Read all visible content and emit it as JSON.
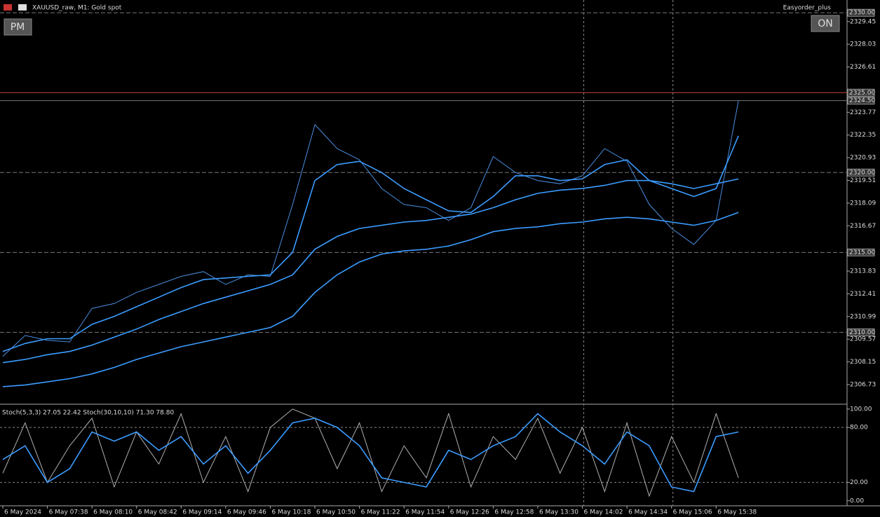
{
  "header": {
    "symbol": "XAUUSD_raw, M1:  Gold spot",
    "expert": "Easyorder_plus",
    "button_left": "PM",
    "button_right": "ON"
  },
  "chart_data": [
    {
      "type": "line",
      "categories": [
        "6 May 2024",
        null,
        "6 May 07:38",
        null,
        "6 May 08:10",
        null,
        "6 May 08:42",
        null,
        "6 May 09:14",
        null,
        "6 May 09:46",
        null,
        "6 May 10:18",
        null,
        "6 May 10:50",
        null,
        "6 May 11:22",
        null,
        "6 May 11:54",
        null,
        "6 May 12:26",
        null,
        "6 May 12:58",
        null,
        "6 May 13:30",
        null,
        "6 May 14:02",
        null,
        "6 May 14:34",
        null,
        "6 May 15:06",
        null,
        "6 May 15:38",
        null,
        null,
        null,
        null,
        null
      ],
      "ylim": [
        2305.5,
        2330.8
      ],
      "yticks": [
        {
          "value": 2329.45,
          "label": "2329.45"
        },
        {
          "value": 2328.03,
          "label": "2328.03"
        },
        {
          "value": 2326.61,
          "label": "2326.61"
        },
        {
          "value": 2323.77,
          "label": "2323.77"
        },
        {
          "value": 2322.35,
          "label": "2322.35"
        },
        {
          "value": 2320.93,
          "label": "2320.93"
        },
        {
          "value": 2319.51,
          "label": "2319.51"
        },
        {
          "value": 2318.09,
          "label": "2318.09"
        },
        {
          "value": 2316.67,
          "label": "2316.67"
        },
        {
          "value": 2313.83,
          "label": "2313.83"
        },
        {
          "value": 2312.41,
          "label": "2312.41"
        },
        {
          "value": 2310.99,
          "label": "2310.99"
        },
        {
          "value": 2309.57,
          "label": "2309.57"
        },
        {
          "value": 2308.15,
          "label": "2308.15"
        },
        {
          "value": 2306.73,
          "label": "2306.73"
        }
      ],
      "levels": [
        {
          "value": 2330,
          "label": "2330.00"
        },
        {
          "value": 2325,
          "label": "2325.00"
        },
        {
          "value": 2324.5,
          "label": "2324.50"
        },
        {
          "value": 2320,
          "label": "2320.00"
        },
        {
          "value": 2315,
          "label": "2315.00"
        },
        {
          "value": 2310,
          "label": "2310.00"
        }
      ],
      "series": [
        {
          "color": "#4a8de0",
          "values": [
            2308.5,
            2309.8,
            2309.5,
            2309.4,
            2311.5,
            2311.8,
            2312.5,
            2313,
            2313.5,
            2313.8,
            2313,
            2313.6,
            2313.5,
            2318,
            2323,
            2321.5,
            2320.8,
            2319,
            2318,
            2317.8,
            2317,
            2317.8,
            2321,
            2320,
            2319.5,
            2319.3,
            2319.8,
            2321.5,
            2320.7,
            2318,
            2316.5,
            2315.5,
            2317,
            2324.5,
            null,
            null,
            null,
            null
          ]
        },
        {
          "color": "#3b9cff",
          "values": [
            2308.8,
            2309.3,
            2309.6,
            2309.6,
            2310.5,
            2311,
            2311.6,
            2312.2,
            2312.8,
            2313.3,
            2313.4,
            2313.5,
            2313.6,
            2315,
            2319.5,
            2320.5,
            2320.7,
            2320,
            2319,
            2318.3,
            2317.6,
            2317.5,
            2318.5,
            2319.8,
            2319.8,
            2319.5,
            2319.6,
            2320.5,
            2320.8,
            2319.5,
            2319,
            2318.5,
            2319,
            2322.3,
            null,
            null,
            null,
            null
          ]
        },
        {
          "color": "#3b9cff",
          "values": [
            2308.1,
            2308.3,
            2308.6,
            2308.8,
            2309.2,
            2309.7,
            2310.2,
            2310.8,
            2311.3,
            2311.8,
            2312.2,
            2312.6,
            2313,
            2313.6,
            2315.2,
            2316,
            2316.5,
            2316.7,
            2316.9,
            2317,
            2317.2,
            2317.4,
            2317.8,
            2318.3,
            2318.7,
            2318.9,
            2319,
            2319.2,
            2319.5,
            2319.5,
            2319.3,
            2319,
            2319.3,
            2319.6,
            null,
            null,
            null,
            null
          ]
        },
        {
          "color": "#3b9cff",
          "values": [
            2306.6,
            2306.7,
            2306.9,
            2307.1,
            2307.4,
            2307.8,
            2308.3,
            2308.7,
            2309.1,
            2309.4,
            2309.7,
            2310,
            2310.3,
            2311,
            2312.5,
            2313.6,
            2314.4,
            2314.9,
            2315.1,
            2315.2,
            2315.4,
            2315.8,
            2316.3,
            2316.5,
            2316.6,
            2316.8,
            2316.9,
            2317.1,
            2317.2,
            2317.1,
            2316.9,
            2316.7,
            2317,
            2317.5,
            null,
            null,
            null,
            null
          ]
        }
      ]
    },
    {
      "type": "line",
      "title": "Stoch(5,3,3) 27.05 22.42 Stoch(30,10,10) 71.30 78.80",
      "ylim": [
        -4,
        103
      ],
      "yticks": [
        {
          "value": 100,
          "label": "100.00"
        },
        {
          "value": 80,
          "label": "80.00"
        },
        {
          "value": 20,
          "label": "20.00"
        },
        {
          "value": 0,
          "label": "0.00"
        }
      ],
      "series": [
        {
          "color": "#b0b0b0",
          "values": [
            30,
            85,
            20,
            60,
            90,
            15,
            75,
            40,
            95,
            20,
            70,
            10,
            80,
            100,
            90,
            35,
            85,
            10,
            60,
            25,
            95,
            15,
            70,
            45,
            90,
            30,
            80,
            10,
            85,
            5,
            70,
            20,
            95,
            25,
            null,
            null,
            null,
            null
          ]
        },
        {
          "color": "#3b9cff",
          "values": [
            45,
            60,
            20,
            35,
            75,
            65,
            75,
            55,
            70,
            40,
            60,
            30,
            55,
            85,
            90,
            80,
            60,
            25,
            20,
            15,
            55,
            45,
            60,
            70,
            95,
            75,
            60,
            40,
            75,
            60,
            15,
            10,
            70,
            75,
            null,
            null,
            null,
            null
          ]
        }
      ]
    }
  ]
}
